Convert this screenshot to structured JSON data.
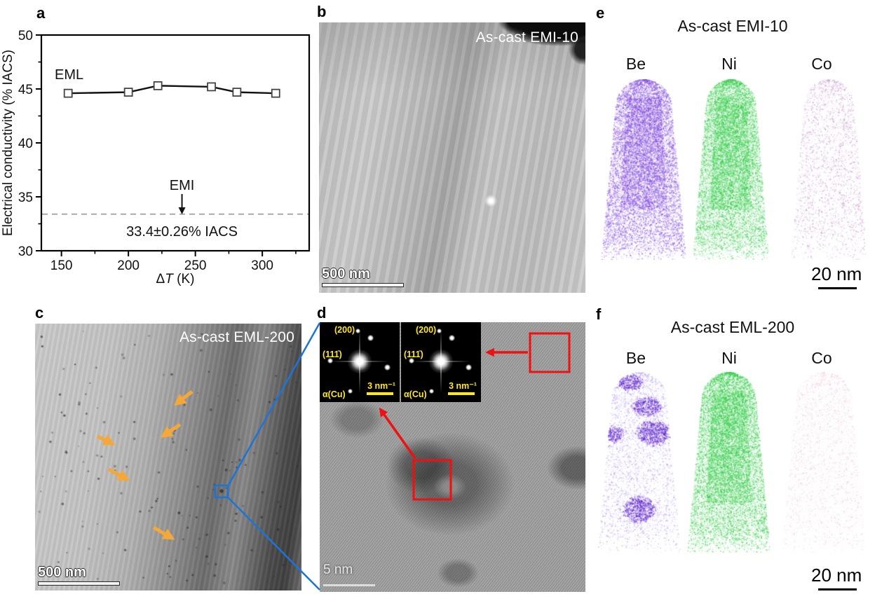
{
  "figure": {
    "panels": {
      "a": {
        "label": "a"
      },
      "b": {
        "label": "b",
        "overlay": "As-cast EMI-10",
        "scalebar": "500 nm"
      },
      "c": {
        "label": "c",
        "overlay": "As-cast EML-200",
        "scalebar": "500 nm"
      },
      "d": {
        "label": "d",
        "scalebar": "5 nm",
        "fft": {
          "plane_200": "(200)",
          "plane_111": "(111̄)",
          "phase": "α(Cu)",
          "scalebar": "3 nm⁻¹"
        }
      },
      "e": {
        "label": "e",
        "title": "As-cast EMI-10",
        "elements": [
          "Be",
          "Ni",
          "Co"
        ],
        "scalebar": "20 nm"
      },
      "f": {
        "label": "f",
        "title": "As-cast EML-200",
        "elements": [
          "Be",
          "Ni",
          "Co"
        ],
        "scalebar": "20 nm"
      }
    }
  },
  "chart_data": {
    "type": "line",
    "series": [
      {
        "name": "EML",
        "marker": "open-square",
        "x": [
          155,
          200,
          222,
          262,
          281,
          310
        ],
        "y": [
          44.6,
          44.7,
          45.3,
          45.2,
          44.7,
          44.6
        ]
      }
    ],
    "reference_line": {
      "label": "EMI",
      "value": 33.4,
      "annotation": "33.4±0.26% IACS",
      "style": "dashed"
    },
    "xlabel": "ΔT (K)",
    "ylabel": "Electrical conductivity (% IACS)",
    "xlim": [
      135,
      335
    ],
    "ylim": [
      30,
      50
    ],
    "xticks": [
      150,
      200,
      250,
      300
    ],
    "yticks": [
      30,
      35,
      40,
      45,
      50
    ],
    "xticks_minor": [
      175,
      225,
      275,
      325
    ],
    "yticks_minor": [
      32.5,
      37.5,
      42.5,
      47.5
    ],
    "grid": false,
    "legend_position": "none"
  },
  "colors": {
    "be_purple": "#7E44DC",
    "be_light": "#9168E2",
    "be_cluster": "#5A1ECC",
    "ni_green": "#2ECC44",
    "co_mauve": "#B67DBE",
    "co_pink": "#E9A4C8",
    "arrow_orange": "#F5A83A",
    "annotation_red": "#EE1111",
    "connector_blue": "#1B74D8",
    "fft_yellow": "#FFE81A"
  }
}
